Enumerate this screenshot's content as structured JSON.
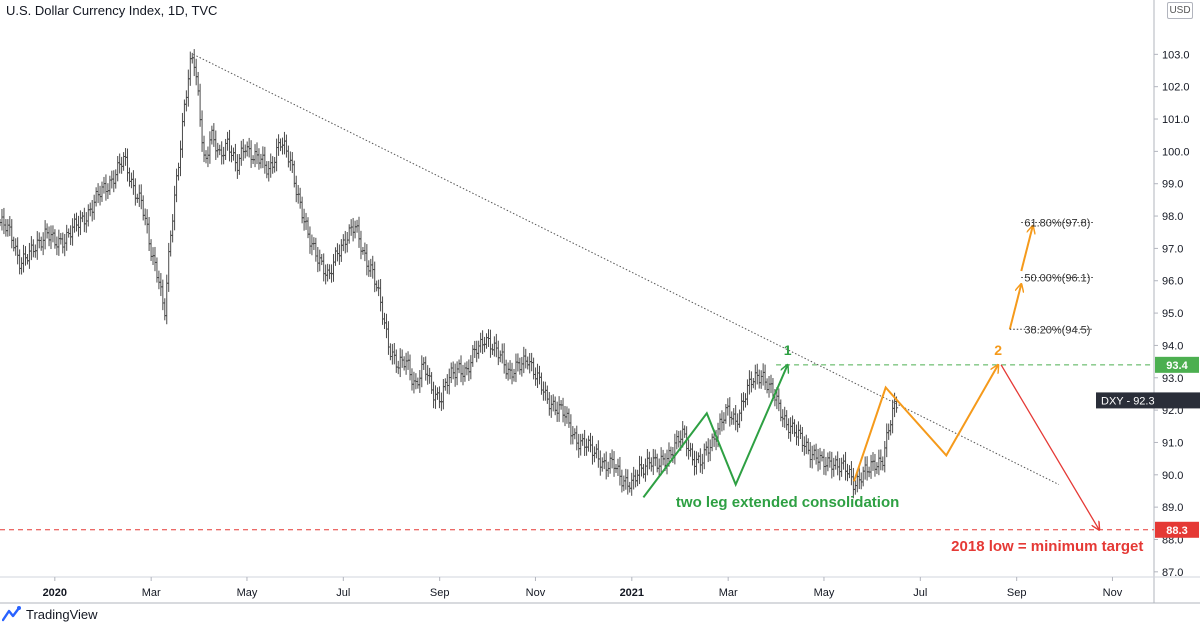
{
  "title": "U.S. Dollar Currency Index, 1D, TVC",
  "currency_button": "USD",
  "logo_text": "TradingView",
  "colors": {
    "price": "#4a4a4a",
    "trendline": "#555555",
    "green": "#2ea043",
    "orange": "#f59a1b",
    "red": "#e53935",
    "level_green": "#4caf50",
    "level_red": "#e53935",
    "fib": "#333333",
    "axis_text": "#131722",
    "dark_tag": "#2a2e39"
  },
  "chart_data": {
    "type": "line",
    "title": "U.S. Dollar Currency Index, 1D, TVC",
    "xlabel": "",
    "ylabel": "",
    "x_domain": [
      2019.905,
      2021.905
    ],
    "ylim": [
      86.84,
      104.0
    ],
    "y_ticks": [
      "87.0",
      "88.0",
      "89.0",
      "90.0",
      "91.0",
      "92.0",
      "93.0",
      "94.0",
      "95.0",
      "96.0",
      "97.0",
      "98.0",
      "99.0",
      "100.0",
      "101.0",
      "102.0",
      "103.0"
    ],
    "x_ticks": [
      {
        "label": "2020",
        "t": 2020.0,
        "bold": true
      },
      {
        "label": "Mar",
        "t": 2020.167,
        "bold": false
      },
      {
        "label": "May",
        "t": 2020.333,
        "bold": false
      },
      {
        "label": "Jul",
        "t": 2020.5,
        "bold": false
      },
      {
        "label": "Sep",
        "t": 2020.667,
        "bold": false
      },
      {
        "label": "Nov",
        "t": 2020.833,
        "bold": false
      },
      {
        "label": "2021",
        "t": 2021.0,
        "bold": true
      },
      {
        "label": "Mar",
        "t": 2021.167,
        "bold": false
      },
      {
        "label": "May",
        "t": 2021.333,
        "bold": false
      },
      {
        "label": "Jul",
        "t": 2021.5,
        "bold": false
      },
      {
        "label": "Sep",
        "t": 2021.667,
        "bold": false
      },
      {
        "label": "Nov",
        "t": 2021.833,
        "bold": false
      }
    ],
    "series": [
      {
        "name": "DXY",
        "style": "ohlc-bars",
        "points": [
          [
            2019.905,
            97.8
          ],
          [
            2019.925,
            97.4
          ],
          [
            2019.94,
            96.6
          ],
          [
            2019.955,
            96.7
          ],
          [
            2019.97,
            97.2
          ],
          [
            2019.985,
            97.5
          ],
          [
            2020.0,
            97.1
          ],
          [
            2020.02,
            97.4
          ],
          [
            2020.04,
            97.7
          ],
          [
            2020.06,
            98.2
          ],
          [
            2020.08,
            98.7
          ],
          [
            2020.1,
            99.2
          ],
          [
            2020.12,
            99.7
          ],
          [
            2020.135,
            99.0
          ],
          [
            2020.15,
            98.4
          ],
          [
            2020.165,
            97.0
          ],
          [
            2020.18,
            96.2
          ],
          [
            2020.19,
            94.9
          ],
          [
            2020.2,
            97.2
          ],
          [
            2020.21,
            99.0
          ],
          [
            2020.225,
            101.5
          ],
          [
            2020.235,
            102.6
          ],
          [
            2020.24,
            102.9
          ],
          [
            2020.25,
            101.5
          ],
          [
            2020.26,
            99.6
          ],
          [
            2020.27,
            100.5
          ],
          [
            2020.285,
            99.8
          ],
          [
            2020.3,
            100.4
          ],
          [
            2020.315,
            99.4
          ],
          [
            2020.33,
            100.2
          ],
          [
            2020.35,
            99.8
          ],
          [
            2020.37,
            99.4
          ],
          [
            2020.39,
            100.3
          ],
          [
            2020.41,
            99.6
          ],
          [
            2020.425,
            98.4
          ],
          [
            2020.44,
            97.2
          ],
          [
            2020.46,
            96.7
          ],
          [
            2020.475,
            96.0
          ],
          [
            2020.49,
            96.9
          ],
          [
            2020.505,
            97.4
          ],
          [
            2020.52,
            97.6
          ],
          [
            2020.535,
            96.9
          ],
          [
            2020.55,
            96.3
          ],
          [
            2020.565,
            95.2
          ],
          [
            2020.58,
            94.0
          ],
          [
            2020.595,
            93.3
          ],
          [
            2020.61,
            93.5
          ],
          [
            2020.625,
            92.8
          ],
          [
            2020.64,
            93.3
          ],
          [
            2020.655,
            92.6
          ],
          [
            2020.67,
            92.4
          ],
          [
            2020.685,
            93.0
          ],
          [
            2020.7,
            93.4
          ],
          [
            2020.715,
            93.1
          ],
          [
            2020.73,
            93.9
          ],
          [
            2020.745,
            94.3
          ],
          [
            2020.76,
            93.8
          ],
          [
            2020.775,
            93.7
          ],
          [
            2020.79,
            93.1
          ],
          [
            2020.805,
            93.3
          ],
          [
            2020.82,
            93.7
          ],
          [
            2020.835,
            93.0
          ],
          [
            2020.85,
            92.4
          ],
          [
            2020.865,
            92.2
          ],
          [
            2020.88,
            91.9
          ],
          [
            2020.895,
            91.4
          ],
          [
            2020.91,
            91.0
          ],
          [
            2020.925,
            90.8
          ],
          [
            2020.94,
            90.7
          ],
          [
            2020.955,
            90.2
          ],
          [
            2020.97,
            90.3
          ],
          [
            2020.985,
            89.9
          ],
          [
            2021.0,
            89.6
          ],
          [
            2021.015,
            90.2
          ],
          [
            2021.03,
            90.5
          ],
          [
            2021.045,
            90.2
          ],
          [
            2021.06,
            90.6
          ],
          [
            2021.075,
            90.9
          ],
          [
            2021.09,
            91.2
          ],
          [
            2021.105,
            90.6
          ],
          [
            2021.12,
            90.3
          ],
          [
            2021.135,
            90.9
          ],
          [
            2021.15,
            91.5
          ],
          [
            2021.165,
            91.9
          ],
          [
            2021.18,
            91.7
          ],
          [
            2021.195,
            92.4
          ],
          [
            2021.21,
            92.9
          ],
          [
            2021.225,
            93.2
          ],
          [
            2021.24,
            92.6
          ],
          [
            2021.255,
            92.1
          ],
          [
            2021.27,
            91.6
          ],
          [
            2021.285,
            91.2
          ],
          [
            2021.3,
            91.0
          ],
          [
            2021.315,
            90.6
          ],
          [
            2021.33,
            90.3
          ],
          [
            2021.345,
            90.5
          ],
          [
            2021.36,
            90.2
          ],
          [
            2021.375,
            90.1
          ],
          [
            2021.385,
            89.8
          ],
          [
            2021.395,
            89.9
          ],
          [
            2021.41,
            90.1
          ],
          [
            2021.42,
            90.4
          ],
          [
            2021.435,
            90.5
          ],
          [
            2021.445,
            91.3
          ],
          [
            2021.455,
            92.1
          ],
          [
            2021.46,
            92.3
          ]
        ]
      }
    ],
    "green_wave": [
      [
        2021.02,
        89.3
      ],
      [
        2021.13,
        91.9
      ],
      [
        2021.18,
        89.7
      ],
      [
        2021.27,
        93.4
      ]
    ],
    "orange_wave": [
      [
        2021.385,
        89.8
      ],
      [
        2021.44,
        92.7
      ],
      [
        2021.545,
        90.6
      ],
      [
        2021.635,
        93.4
      ]
    ],
    "orange_arrows": [
      [
        [
          2021.655,
          94.5
        ],
        [
          2021.675,
          95.9
        ]
      ],
      [
        [
          2021.675,
          96.3
        ],
        [
          2021.695,
          97.7
        ]
      ]
    ],
    "red_arrow": [
      [
        2021.64,
        93.4
      ],
      [
        2021.81,
        88.3
      ]
    ],
    "trendline": [
      [
        2020.24,
        103.0
      ],
      [
        2021.74,
        89.7
      ]
    ],
    "levels": [
      {
        "name": "green-resistance",
        "y": 93.4,
        "label": "93.4",
        "style": "dashed",
        "color": "#4caf50",
        "from": 2021.25
      },
      {
        "name": "red-support",
        "y": 88.3,
        "label": "88.3",
        "style": "dashed",
        "color": "#e53935",
        "from": 2019.905
      }
    ],
    "last_price": {
      "symbol": "DXY",
      "value": "92.3",
      "label": "DXY - 92.3",
      "y": 92.3
    },
    "fib_levels": [
      {
        "label": "38.20%(94.5)",
        "y": 94.5,
        "from": 2021.655,
        "to": 2021.8
      },
      {
        "label": "50.00%(96.1)",
        "y": 96.1,
        "from": 2021.675,
        "to": 2021.8
      },
      {
        "label": "61.80%(97.8)",
        "y": 97.8,
        "from": 2021.675,
        "to": 2021.8
      }
    ],
    "annotations": [
      {
        "name": "wave-1-label",
        "text": "1",
        "t": 2021.27,
        "y": 93.7,
        "color": "#2ea043"
      },
      {
        "name": "wave-2-label",
        "text": "2",
        "t": 2021.635,
        "y": 93.7,
        "color": "#f59a1b"
      },
      {
        "name": "consolidation-label",
        "text": "two leg extended consolidation",
        "t": 2021.27,
        "y": 89.0,
        "color": "#2ea043"
      },
      {
        "name": "target-label",
        "text": "2018 low = minimum target",
        "t": 2021.72,
        "y": 87.65,
        "color": "#e53935"
      }
    ]
  }
}
